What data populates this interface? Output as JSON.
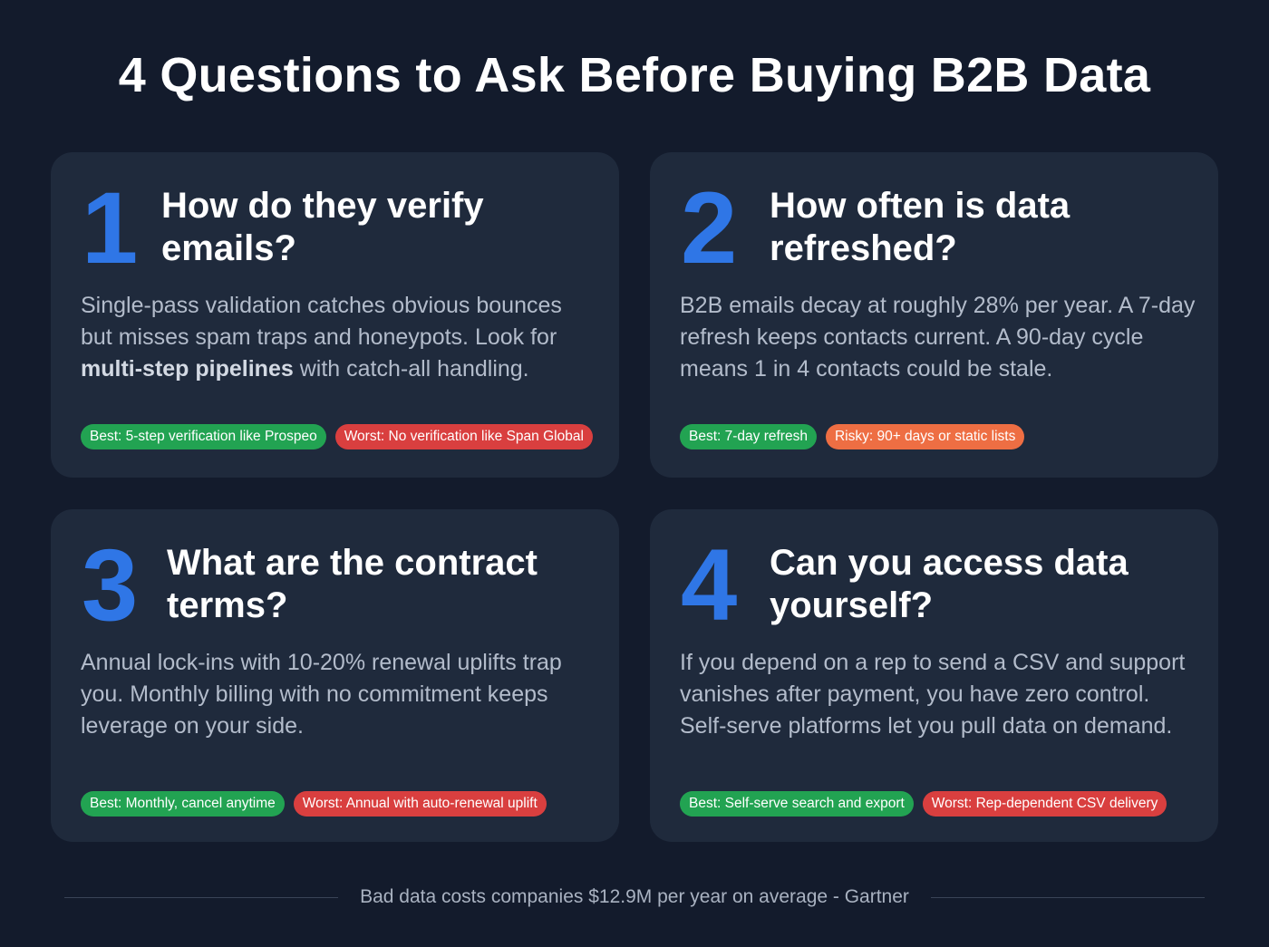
{
  "title": "4 Questions to Ask Before Buying B2B Data",
  "cards": [
    {
      "number": "1",
      "question": "How do they verify emails?",
      "body_before": "Single-pass validation catches obvious bounces but misses spam traps and honeypots. Look for ",
      "body_bold": "multi-step pipelines",
      "body_after": " with catch-all handling.",
      "tags": [
        {
          "label": "Best: 5-step verification like Prospeo",
          "kind": "best"
        },
        {
          "label": "Worst: No verification like Span Global",
          "kind": "worst"
        }
      ]
    },
    {
      "number": "2",
      "question": "How often is data refreshed?",
      "body_before": "B2B emails decay at roughly 28% per year. A 7-day refresh keeps contacts current. A 90-day cycle means 1 in 4 contacts could be stale.",
      "tags": [
        {
          "label": "Best: 7-day refresh",
          "kind": "best"
        },
        {
          "label": "Risky: 90+ days or static lists",
          "kind": "risky"
        }
      ]
    },
    {
      "number": "3",
      "question": "What are the contract terms?",
      "body_before": "Annual lock-ins with 10-20% renewal uplifts trap you. Monthly billing with no commitment keeps leverage on your side.",
      "tags": [
        {
          "label": "Best: Monthly, cancel anytime",
          "kind": "best"
        },
        {
          "label": "Worst: Annual with auto-renewal uplift",
          "kind": "worst"
        }
      ]
    },
    {
      "number": "4",
      "question": "Can you access data yourself?",
      "body_before": "If you depend on a rep to send a CSV and support vanishes after payment, you have zero control. Self-serve platforms let you pull data on demand.",
      "tags": [
        {
          "label": "Best: Self-serve search and export",
          "kind": "best"
        },
        {
          "label": "Worst: Rep-dependent CSV delivery",
          "kind": "worst"
        }
      ]
    }
  ],
  "colors": {
    "accent": "#2f76e6",
    "best": "#22a352",
    "worst": "#d93f3f",
    "risky": "#ee6e43",
    "background": "#131b2c",
    "card": "#1f2a3c"
  },
  "footer": "Bad data costs companies $12.9M per year on average - Gartner"
}
